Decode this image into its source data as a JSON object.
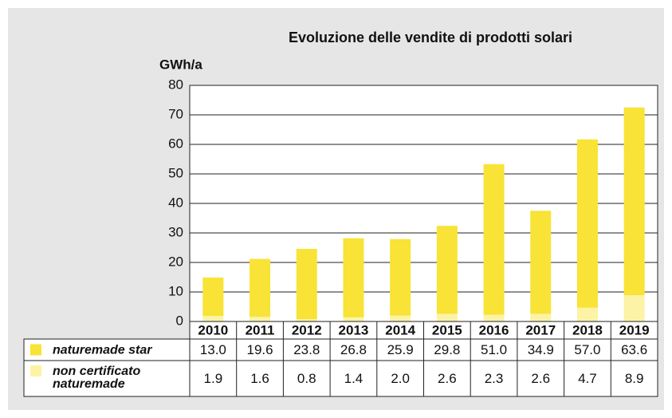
{
  "chart_data": {
    "type": "bar",
    "stacked": true,
    "title": "Evoluzione delle vendite di prodotti solari",
    "y_label": "GWh/a",
    "categories": [
      "2010",
      "2011",
      "2012",
      "2013",
      "2014",
      "2015",
      "2016",
      "2017",
      "2018",
      "2019"
    ],
    "series": [
      {
        "name": "naturemade star",
        "color": "#f8e336",
        "values": [
          13.0,
          19.6,
          23.8,
          26.8,
          25.9,
          29.8,
          51.0,
          34.9,
          57.0,
          63.6
        ],
        "value_labels": [
          "13.0",
          "19.6",
          "23.8",
          "26.8",
          "25.9",
          "29.8",
          "51.0",
          "34.9",
          "57.0",
          "63.6"
        ]
      },
      {
        "name": "non certificato naturemade",
        "color": "#fcf3a6",
        "values": [
          1.9,
          1.6,
          0.8,
          1.4,
          2.0,
          2.6,
          2.3,
          2.6,
          4.7,
          8.9
        ],
        "value_labels": [
          "1.9",
          "1.6",
          "0.8",
          "1.4",
          "2.0",
          "2.6",
          "2.3",
          "2.6",
          "4.7",
          "8.9"
        ]
      }
    ],
    "ylim": [
      0,
      80
    ],
    "yticks": [
      0,
      10,
      20,
      30,
      40,
      50,
      60,
      70,
      80
    ],
    "grid": true
  }
}
